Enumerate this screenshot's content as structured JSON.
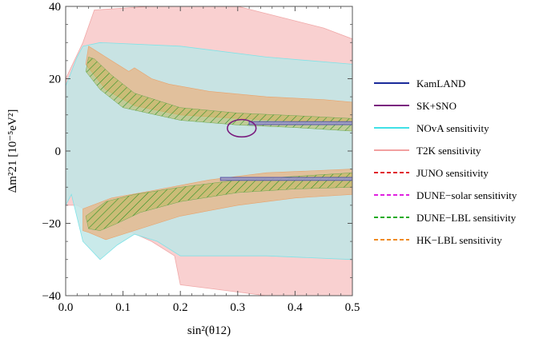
{
  "chart_data": {
    "type": "area",
    "xlabel": "sin²(θ12)",
    "ylabel": "Δm²21 [10⁻⁵eV²]",
    "xlim": [
      0.0,
      0.5
    ],
    "ylim": [
      -40,
      40
    ],
    "x_ticks": [
      "0.0",
      "0.1",
      "0.2",
      "0.3",
      "0.4",
      "0.5"
    ],
    "y_ticks": [
      "−40",
      "−20",
      "0",
      "20",
      "40"
    ],
    "legend_position": "right",
    "legend": [
      {
        "label": "KamLAND",
        "color": "#1a2a9a",
        "style": "solid"
      },
      {
        "label": "SK+SNO",
        "color": "#7a1c7e",
        "style": "solid"
      },
      {
        "label": "NOvA sensitivity",
        "color": "#3fe0e6",
        "style": "solid"
      },
      {
        "label": "T2K sensitivity",
        "color": "#f2a0a0",
        "style": "solid"
      },
      {
        "label": "JUNO sensitivity",
        "color": "#e0202a",
        "style": "dashed"
      },
      {
        "label": "DUNE−solar sensitivity",
        "color": "#e020e0",
        "style": "dashed"
      },
      {
        "label": "DUNE−LBL sensitivity",
        "color": "#22aa22",
        "style": "dashed"
      },
      {
        "label": "HK−LBL sensitivity",
        "color": "#f08a20",
        "style": "dashed"
      }
    ],
    "regions": {
      "T2K": [
        [
          0.0,
          20
        ],
        [
          0.03,
          30
        ],
        [
          0.05,
          39
        ],
        [
          0.15,
          40
        ],
        [
          0.3,
          40
        ],
        [
          0.45,
          34
        ],
        [
          0.5,
          31
        ],
        [
          0.5,
          -40
        ],
        [
          0.35,
          -40
        ],
        [
          0.25,
          -38
        ],
        [
          0.2,
          -37
        ],
        [
          0.19,
          -29
        ],
        [
          0.15,
          -25
        ],
        [
          0.08,
          -20
        ],
        [
          0.02,
          -15
        ],
        [
          0.0,
          -15
        ]
      ],
      "NOvA": [
        [
          0.0,
          18
        ],
        [
          0.02,
          26
        ],
        [
          0.03,
          29
        ],
        [
          0.06,
          30
        ],
        [
          0.2,
          29
        ],
        [
          0.35,
          26
        ],
        [
          0.5,
          24
        ],
        [
          0.5,
          -30
        ],
        [
          0.35,
          -29
        ],
        [
          0.2,
          -29
        ],
        [
          0.16,
          -25
        ],
        [
          0.12,
          -23
        ],
        [
          0.09,
          -26
        ],
        [
          0.06,
          -30
        ],
        [
          0.03,
          -25
        ],
        [
          0.01,
          -12
        ],
        [
          0.0,
          -15
        ]
      ],
      "HK_LBL": [
        [
          0.035,
          24
        ],
        [
          0.07,
          17
        ],
        [
          0.12,
          12.5
        ],
        [
          0.2,
          10
        ],
        [
          0.3,
          9
        ],
        [
          0.4,
          8.3
        ],
        [
          0.5,
          7.8
        ],
        [
          0.5,
          13.5
        ],
        [
          0.45,
          14.2
        ],
        [
          0.35,
          15
        ],
        [
          0.25,
          16.5
        ],
        [
          0.18,
          18.5
        ],
        [
          0.15,
          20
        ],
        [
          0.12,
          23
        ],
        [
          0.11,
          22
        ],
        [
          0.07,
          26
        ],
        [
          0.05,
          28
        ],
        [
          0.04,
          29
        ]
      ],
      "HK_LBL_lower": [
        [
          0.03,
          -16
        ],
        [
          0.08,
          -13
        ],
        [
          0.15,
          -11
        ],
        [
          0.25,
          -8
        ],
        [
          0.35,
          -6
        ],
        [
          0.5,
          -5
        ],
        [
          0.5,
          -12
        ],
        [
          0.4,
          -13
        ],
        [
          0.3,
          -15
        ],
        [
          0.2,
          -18
        ],
        [
          0.14,
          -21
        ],
        [
          0.1,
          -23
        ],
        [
          0.07,
          -24.5
        ],
        [
          0.04,
          -22.5
        ],
        [
          0.03,
          -22
        ]
      ],
      "DUNE_LBL": [
        [
          0.035,
          22
        ],
        [
          0.06,
          17
        ],
        [
          0.1,
          12
        ],
        [
          0.2,
          8.5
        ],
        [
          0.3,
          7.2
        ],
        [
          0.4,
          6.5
        ],
        [
          0.5,
          5.5
        ],
        [
          0.5,
          9
        ],
        [
          0.4,
          9.8
        ],
        [
          0.3,
          10.5
        ],
        [
          0.2,
          12
        ],
        [
          0.12,
          16
        ],
        [
          0.08,
          21
        ],
        [
          0.05,
          25.5
        ],
        [
          0.04,
          26
        ]
      ],
      "DUNE_LBL_lower": [
        [
          0.035,
          -18
        ],
        [
          0.07,
          -14
        ],
        [
          0.12,
          -12
        ],
        [
          0.2,
          -10
        ],
        [
          0.3,
          -8
        ],
        [
          0.4,
          -7
        ],
        [
          0.5,
          -6
        ],
        [
          0.5,
          -10
        ],
        [
          0.4,
          -10.5
        ],
        [
          0.3,
          -11.5
        ],
        [
          0.2,
          -14
        ],
        [
          0.13,
          -17
        ],
        [
          0.09,
          -20
        ],
        [
          0.06,
          -22
        ],
        [
          0.04,
          -21.5
        ]
      ],
      "KamLAND_upper": [
        [
          0.32,
          7.3
        ],
        [
          0.5,
          7.3
        ],
        [
          0.5,
          8.1
        ],
        [
          0.32,
          8.1
        ]
      ],
      "KamLAND_lower": [
        [
          0.27,
          -7.3
        ],
        [
          0.5,
          -7.3
        ],
        [
          0.5,
          -8.1
        ],
        [
          0.27,
          -8.1
        ]
      ]
    },
    "sk_sno_ellipse": {
      "center": [
        0.307,
        6.3
      ],
      "semi_axes": [
        0.025,
        2.4
      ]
    }
  }
}
